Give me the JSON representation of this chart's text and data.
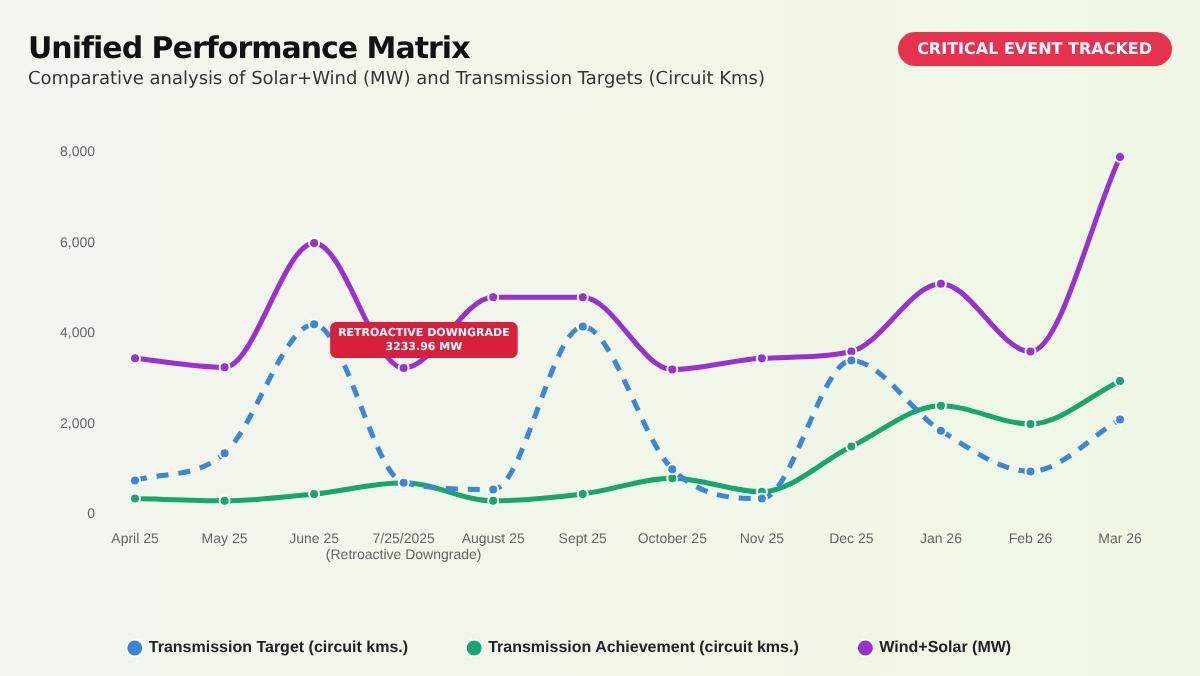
{
  "chart_data": {
    "type": "line",
    "title": "Unified Performance Matrix",
    "subtitle": "Comparative analysis of Solar+Wind (MW) and Transmission Targets (Circuit Kms)",
    "categories": [
      "April 25",
      "May 25",
      "June 25",
      "7/25/2025\n(Retroactive Downgrade)",
      "August 25",
      "Sept 25",
      "October 25",
      "Nov 25",
      "Dec 25",
      "Jan 26",
      "Feb 26",
      "Mar 26"
    ],
    "series": [
      {
        "name": "Transmission Target (circuit kms.)",
        "color": "#3a86d8",
        "line_style": "dashed",
        "values": [
          750,
          1350,
          4200,
          700,
          550,
          4150,
          1000,
          350,
          3400,
          1850,
          950,
          2100
        ]
      },
      {
        "name": "Transmission Achievement (circuit kms.)",
        "color": "#14a86c",
        "values": [
          350,
          300,
          450,
          700,
          300,
          450,
          800,
          500,
          1500,
          2400,
          2000,
          2950
        ]
      },
      {
        "name": "Wind+Solar (MW)",
        "color": "#9b2fd0",
        "values": [
          3450,
          3250,
          6000,
          3234,
          4800,
          4800,
          3200,
          3450,
          3600,
          5100,
          3600,
          7900
        ]
      }
    ],
    "ylim": [
      0,
      8000
    ],
    "yticks": [
      0,
      {
        "value": 2000,
        "label": "2,000"
      },
      {
        "value": 4000,
        "label": "4,000"
      },
      {
        "value": 6000,
        "label": "6,000"
      },
      {
        "value": 8000,
        "label": "8,000"
      }
    ],
    "grid": false,
    "legend": "bottom",
    "marker": "circle",
    "line_style": "solid",
    "annotations": [
      "CRITICAL EVENT TRACKED",
      {
        "text": "RETROACTIVE DOWNGRADE\n3233.96 MW",
        "x": "7/25/2025\n(Retroactive Downgrade)",
        "y": 3234
      }
    ]
  }
}
